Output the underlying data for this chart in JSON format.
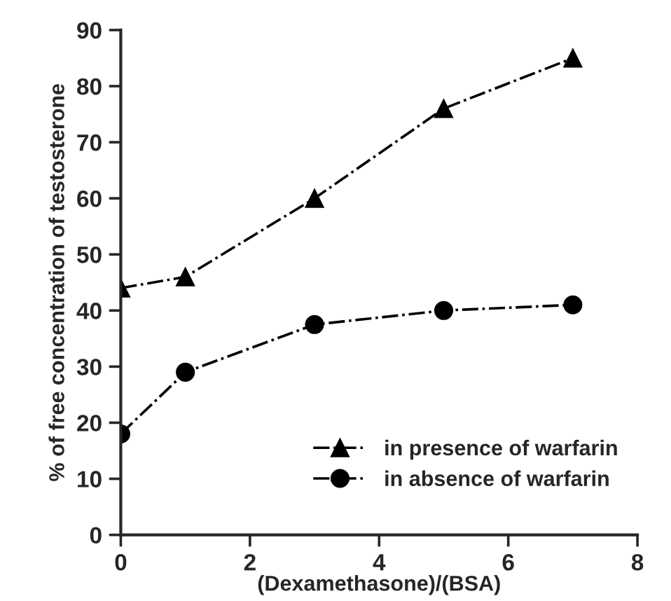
{
  "chart_data": {
    "type": "line",
    "xlabel": "(Dexamethasone)/(BSA)",
    "ylabel": "% of free concentration of testosterone",
    "x": [
      0,
      1,
      3,
      5,
      7
    ],
    "series": [
      {
        "name": "in presence of warfarin",
        "color": "#000000",
        "marker": "triangle",
        "values": [
          44,
          46,
          60,
          76,
          85
        ]
      },
      {
        "name": "in absence of warfarin",
        "color": "#000000",
        "marker": "circle",
        "values": [
          18,
          29,
          37.5,
          40,
          41
        ]
      }
    ],
    "line_style": "dashed",
    "xlim": [
      0,
      8
    ],
    "xticks": [
      0,
      2,
      4,
      6,
      8
    ],
    "ylim": [
      0,
      90
    ],
    "yticks": [
      0,
      10,
      20,
      30,
      40,
      50,
      60,
      70,
      80,
      90
    ],
    "grid": false,
    "legend": "bottom right"
  }
}
